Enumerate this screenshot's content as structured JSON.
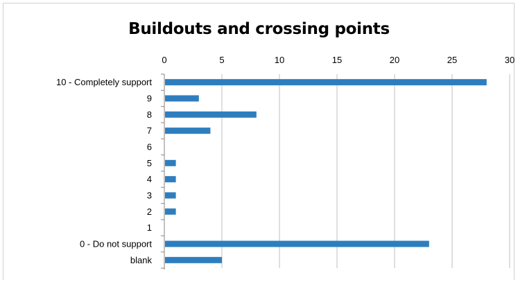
{
  "chart_data": {
    "type": "bar",
    "orientation": "horizontal",
    "title": "Buildouts and crossing points",
    "categories": [
      "10 - Completely support",
      "9",
      "8",
      "7",
      "6",
      "5",
      "4",
      "3",
      "2",
      "1",
      "0 - Do not support",
      "blank"
    ],
    "values": [
      28,
      3,
      8,
      4,
      0,
      1,
      1,
      1,
      1,
      0,
      23,
      5
    ],
    "xlim": [
      0,
      30
    ],
    "x_ticks": [
      0,
      5,
      10,
      15,
      20,
      25,
      30
    ],
    "x_axis_position": "top",
    "grid": true,
    "legend": "none",
    "bar_color": "#2e7ebf",
    "grid_color": "#bfbfbf"
  }
}
